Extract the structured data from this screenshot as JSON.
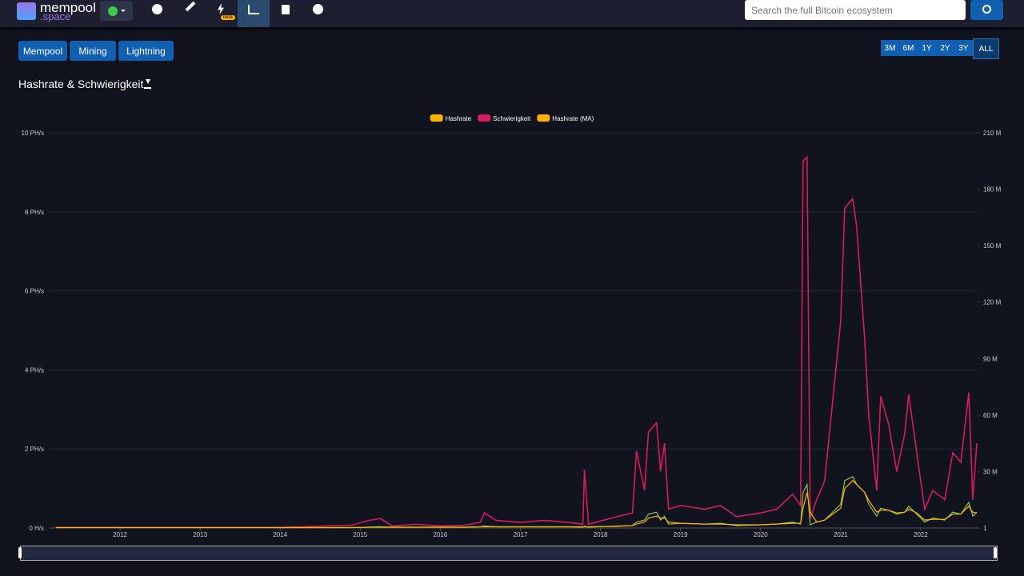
{
  "header": {
    "logo": "mempool",
    "logo_sub": ".space",
    "beta": "beta",
    "search": "Search the full Bitcoin ecosystem"
  },
  "menu": [
    "Mempool",
    "Mining",
    "Lightning"
  ],
  "ranges": [
    "3M",
    "6M",
    "1Y",
    "2Y",
    "3Y",
    "ALL"
  ],
  "heading": "Hashrate & Schwierigkeit",
  "chart_data": {
    "type": "line",
    "x": [
      2011.2,
      2012,
      2013,
      2014,
      2014.9,
      2015.1,
      2015.25,
      2015.4,
      2015.7,
      2016,
      2016.3,
      2016.5,
      2016.55,
      2016.7,
      2017,
      2017.3,
      2017.6,
      2017.78,
      2017.8,
      2017.85,
      2018.2,
      2018.4,
      2018.45,
      2018.55,
      2018.6,
      2018.7,
      2018.75,
      2018.8,
      2018.85,
      2019,
      2019.3,
      2019.5,
      2019.7,
      2020,
      2020.2,
      2020.4,
      2020.5,
      2020.53,
      2020.58,
      2020.62,
      2020.7,
      2020.8,
      2021,
      2021.05,
      2021.15,
      2021.2,
      2021.3,
      2021.35,
      2021.45,
      2021.5,
      2021.6,
      2021.7,
      2021.8,
      2021.85,
      2021.95,
      2022.05,
      2022.15,
      2022.3,
      2022.4,
      2022.5,
      2022.6,
      2022.65,
      2022.7
    ],
    "xlim": [
      2011.11,
      2022.71
    ],
    "xticks": [
      2012,
      2013,
      2014,
      2015,
      2016,
      2017,
      2018,
      2019,
      2020,
      2021,
      2022
    ],
    "ylim": [
      0,
      10
    ],
    "yticks": [
      {
        "value": 0,
        "label": "0 H/s"
      },
      {
        "value": 2,
        "label": "2 PH/s"
      },
      {
        "value": 4,
        "label": "4 PH/s"
      },
      {
        "value": 6,
        "label": "6 PH/s"
      },
      {
        "value": 8,
        "label": "8 PH/s"
      },
      {
        "value": 10,
        "label": "10 PH/s"
      }
    ],
    "y2lim": [
      1,
      210000000
    ],
    "y2ticks": [
      1,
      {
        "value": 30000000,
        "label": "30 M"
      },
      {
        "value": 60000000,
        "label": "60 M"
      },
      {
        "value": 90000000,
        "label": "90 M"
      },
      {
        "value": 120000000,
        "label": "120 M"
      },
      {
        "value": 150000000,
        "label": "150 M"
      },
      {
        "value": 180000000,
        "label": "180 M"
      },
      {
        "value": 210000000,
        "label": "210 M"
      }
    ],
    "grid": true,
    "legend": "top",
    "series": [
      {
        "name": "Hashrate",
        "color": "#ffb300",
        "line_color": "#8bc34a",
        "values": [
          0.01,
          0.01,
          0.01,
          0.01,
          0.01,
          0.02,
          0.03,
          0.02,
          0.02,
          0.02,
          0.02,
          0.03,
          0.05,
          0.03,
          0.03,
          0.03,
          0.03,
          0.02,
          0.05,
          0.02,
          0.05,
          0.06,
          0.15,
          0.2,
          0.35,
          0.4,
          0.2,
          0.3,
          0.1,
          0.12,
          0.1,
          0.12,
          0.06,
          0.08,
          0.1,
          0.15,
          0.1,
          0.9,
          1.1,
          0.08,
          0.15,
          0.2,
          0.6,
          1.2,
          1.3,
          1.1,
          0.9,
          0.6,
          0.3,
          0.5,
          0.45,
          0.35,
          0.4,
          0.55,
          0.35,
          0.15,
          0.25,
          0.2,
          0.4,
          0.35,
          0.65,
          0.3,
          0.4
        ]
      },
      {
        "name": "Schwierigkeit",
        "color": "#d81b60",
        "axis": "y2",
        "values": [
          300000,
          300000,
          300000,
          300000,
          1500000,
          4000000,
          5000000,
          1000000,
          2000000,
          1000000,
          1500000,
          3000000,
          8000000,
          4000000,
          3000000,
          4000000,
          3000000,
          2000000,
          31000000,
          2000000,
          6000000,
          8000000,
          41000000,
          20000000,
          51000000,
          56000000,
          30000000,
          45000000,
          10000000,
          12000000,
          10000000,
          12000000,
          6000000,
          8000000,
          10000000,
          18000000,
          12000000,
          195000000,
          197000000,
          5000000,
          15000000,
          25000000,
          110000000,
          170000000,
          175000000,
          160000000,
          100000000,
          60000000,
          20000000,
          70000000,
          55000000,
          30000000,
          50000000,
          71000000,
          40000000,
          10000000,
          20000000,
          15000000,
          40000000,
          35000000,
          72000000,
          15000000,
          45000000
        ]
      },
      {
        "name": "Hashrate (MA)",
        "color": "#ffb300",
        "values": [
          0.01,
          0.01,
          0.01,
          0.01,
          0.01,
          0.02,
          0.02,
          0.02,
          0.02,
          0.02,
          0.02,
          0.03,
          0.03,
          0.03,
          0.03,
          0.03,
          0.03,
          0.03,
          0.03,
          0.03,
          0.04,
          0.06,
          0.1,
          0.15,
          0.25,
          0.3,
          0.25,
          0.25,
          0.15,
          0.12,
          0.1,
          0.1,
          0.08,
          0.08,
          0.1,
          0.12,
          0.12,
          0.5,
          0.9,
          0.4,
          0.15,
          0.2,
          0.5,
          1.0,
          1.2,
          1.1,
          0.9,
          0.7,
          0.4,
          0.45,
          0.45,
          0.38,
          0.4,
          0.48,
          0.38,
          0.2,
          0.22,
          0.22,
          0.35,
          0.35,
          0.55,
          0.4,
          0.38
        ]
      }
    ]
  }
}
